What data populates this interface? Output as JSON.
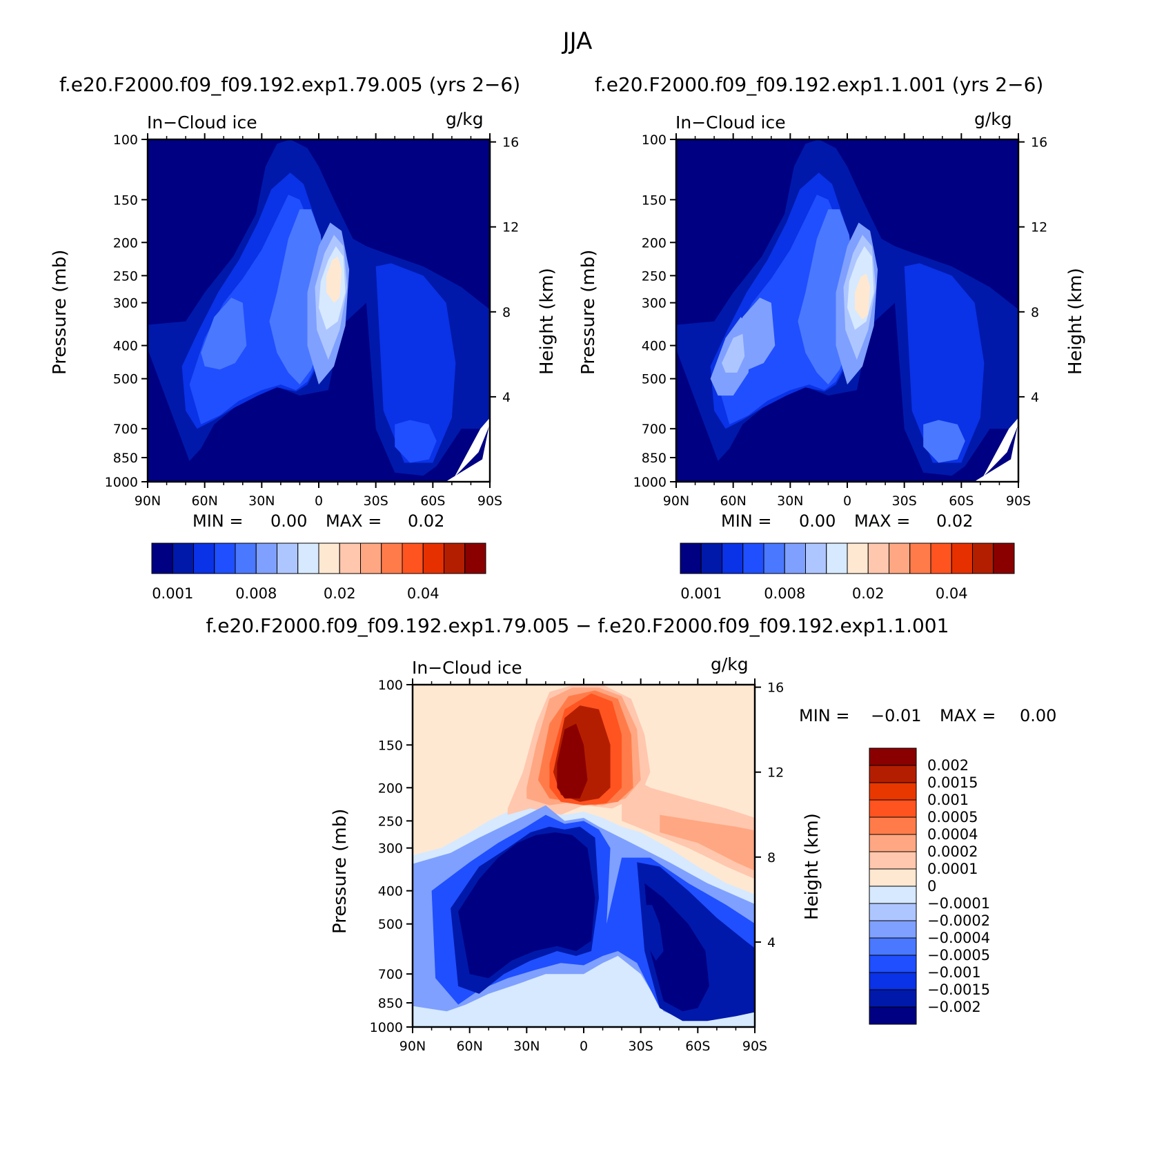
{
  "main_title": "JJA",
  "panel_titles": {
    "left": "f.e20.F2000.f09_f09.192.exp1.79.005 (yrs 2−6)",
    "right": "f.e20.F2000.f09_f09.192.exp1.1.001 (yrs 2−6)",
    "diff": "f.e20.F2000.f09_f09.192.exp1.79.005 − f.e20.F2000.f09_f09.192.exp1.1.001"
  },
  "colors": {
    "abs_levels": [
      "#000082",
      "#0019aa",
      "#0a32e6",
      "#1f4fff",
      "#4a78ff",
      "#7fa0ff",
      "#aec6ff",
      "#d6e9ff",
      "#ffe8d2",
      "#ffc7ae",
      "#ffa782",
      "#ff7c4a",
      "#ff5420",
      "#e63000",
      "#b41e00",
      "#8a0000"
    ],
    "diff_levels": [
      "#8a0000",
      "#b41e00",
      "#e83800",
      "#ff5420",
      "#ff7c4a",
      "#ffa782",
      "#ffc7ae",
      "#ffe8d2",
      "#d6e9ff",
      "#aec6ff",
      "#7fa0ff",
      "#4a78ff",
      "#1f4fff",
      "#0a32e6",
      "#0019aa",
      "#000082"
    ]
  },
  "chart_data": [
    {
      "type": "heatmap",
      "id": "left",
      "title": "f.e20.F2000.f09_f09.192.exp1.79.005 (yrs 2−6)",
      "variable": "In−Cloud ice",
      "units": "g/kg",
      "ylabel": "Pressure (mb)",
      "ylabel_right": "Height (km)",
      "x_ticks": [
        "90N",
        "60N",
        "30N",
        "0",
        "30S",
        "60S",
        "90S"
      ],
      "x_range": [
        90,
        -90
      ],
      "y_ticks": [
        100,
        150,
        200,
        250,
        300,
        400,
        500,
        700,
        850,
        1000
      ],
      "y_range": [
        100,
        1000
      ],
      "height_ticks": [
        16,
        12,
        8,
        4
      ],
      "min_label": "MIN =",
      "min_value": "0.00",
      "max_label": "MAX =",
      "max_value": "0.02",
      "colorbar_labels": [
        "0.001",
        "0.008",
        "0.02",
        "0.04"
      ],
      "features": [
        {
          "lat": -12,
          "p": 235,
          "level": 8,
          "desc": "tropical upper maximum"
        },
        {
          "lat": 48,
          "p": 380,
          "level": 4
        },
        {
          "lat": -52,
          "p": 750,
          "level": 5
        }
      ]
    },
    {
      "type": "heatmap",
      "id": "right",
      "title": "f.e20.F2000.f09_f09.192.exp1.1.001 (yrs 2−6)",
      "variable": "In−Cloud ice",
      "units": "g/kg",
      "ylabel": "Pressure (mb)",
      "ylabel_right": "Height (km)",
      "x_ticks": [
        "90N",
        "60N",
        "30N",
        "0",
        "30S",
        "60S",
        "90S"
      ],
      "x_range": [
        90,
        -90
      ],
      "y_ticks": [
        100,
        150,
        200,
        250,
        300,
        400,
        500,
        700,
        850,
        1000
      ],
      "y_range": [
        100,
        1000
      ],
      "height_ticks": [
        16,
        12,
        8,
        4
      ],
      "min_label": "MIN =",
      "min_value": "0.00",
      "max_label": "MAX =",
      "max_value": "0.02",
      "colorbar_labels": [
        "0.001",
        "0.008",
        "0.02",
        "0.04"
      ],
      "features": [
        {
          "lat": -11,
          "p": 260,
          "level": 8,
          "desc": "tropical upper maximum"
        },
        {
          "lat": 57,
          "p": 400,
          "level": 6
        },
        {
          "lat": -53,
          "p": 760,
          "level": 6
        }
      ]
    },
    {
      "type": "heatmap",
      "id": "diff",
      "title": "f.e20.F2000.f09_f09.192.exp1.79.005 − f.e20.F2000.f09_f09.192.exp1.1.001",
      "variable": "In−Cloud ice",
      "units": "g/kg",
      "ylabel": "Pressure (mb)",
      "ylabel_right": "Height (km)",
      "x_ticks": [
        "90N",
        "60N",
        "30N",
        "0",
        "30S",
        "60S",
        "90S"
      ],
      "x_range": [
        90,
        -90
      ],
      "y_ticks": [
        100,
        150,
        200,
        250,
        300,
        400,
        500,
        700,
        850,
        1000
      ],
      "y_range": [
        100,
        1000
      ],
      "height_ticks": [
        16,
        12,
        8,
        4
      ],
      "min_label": "MIN =",
      "min_value": "−0.01",
      "max_label": "MAX =",
      "max_value": "0.00",
      "colorbar_labels": [
        "0.002",
        "0.0015",
        "0.001",
        "0.0005",
        "0.0004",
        "0.0002",
        "0.0001",
        "0",
        "−0.0001",
        "−0.0002",
        "−0.0004",
        "−0.0005",
        "−0.001",
        "−0.0015",
        "−0.002"
      ],
      "features": [
        {
          "lat": -12,
          "p": 160,
          "sign": "positive",
          "desc": "upper tropical increase"
        },
        {
          "lat": 25,
          "p": 420,
          "sign": "negative",
          "desc": "NH mid-level decrease"
        },
        {
          "lat": -50,
          "p": 680,
          "sign": "negative",
          "desc": "SH lower decrease"
        }
      ]
    }
  ]
}
